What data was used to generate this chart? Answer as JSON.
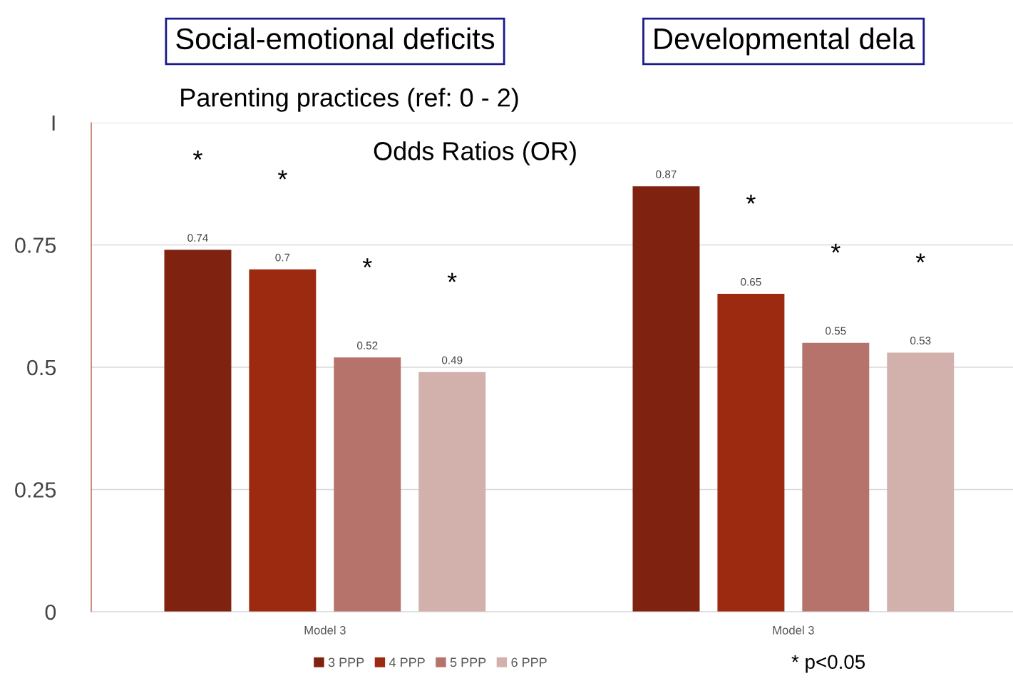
{
  "chart_data": {
    "type": "bar",
    "categories": [
      "Model 3",
      "Model 3"
    ],
    "series": [
      {
        "name": "3 PPP",
        "color": "#7f2210",
        "values": [
          0.74,
          0.87
        ]
      },
      {
        "name": "4 PPP",
        "color": "#9b2a10",
        "values": [
          0.7,
          0.65
        ]
      },
      {
        "name": "5 PPP",
        "color": "#b5736b",
        "values": [
          0.52,
          0.55
        ]
      },
      {
        "name": "6 PPP",
        "color": "#d2b1ad",
        "values": [
          0.49,
          0.53
        ]
      }
    ],
    "ylim": [
      0,
      1
    ],
    "yticks": [
      0,
      0.25,
      0.5,
      0.75,
      {
        "value": 1,
        "label": "I"
      }
    ],
    "grid": "y",
    "legend": "bottom",
    "data_labels": true,
    "annotations": [
      "Social-emotional deficits",
      "Developmental dela",
      "Parenting practices (ref: 0 - 2)",
      "Odds Ratios (OR)",
      "*",
      "*",
      "*",
      "*",
      "*",
      "*",
      "*",
      "* p<0.05"
    ]
  }
}
